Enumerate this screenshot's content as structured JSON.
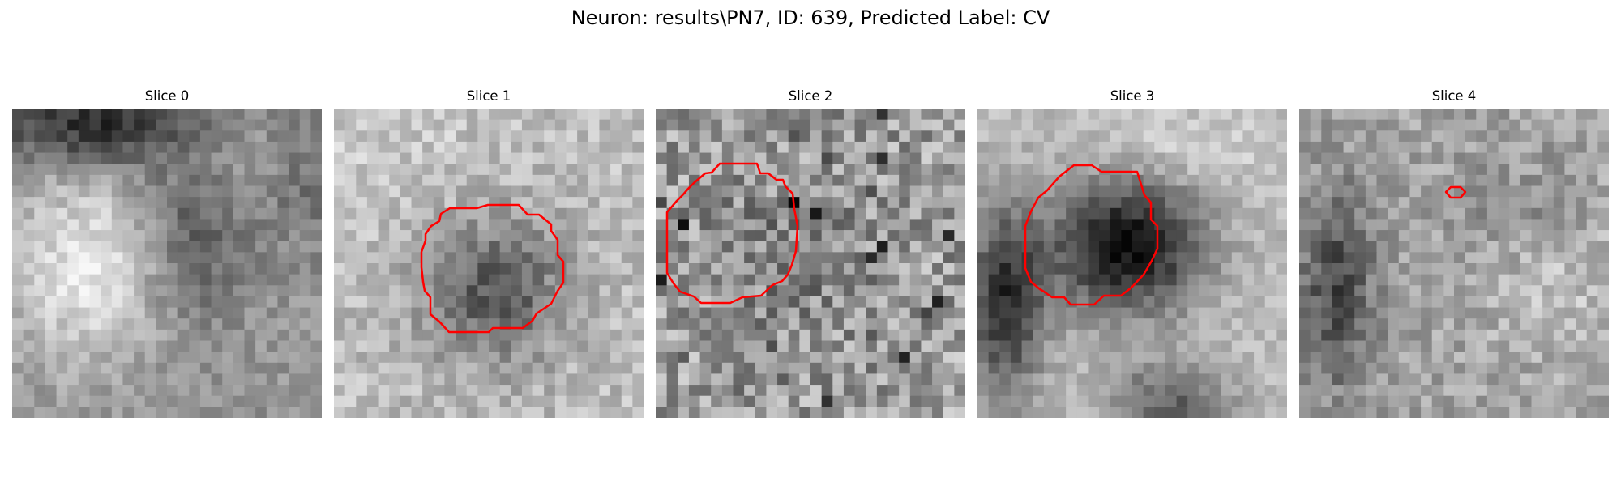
{
  "figure": {
    "title": "Neuron: results\\PN7, ID: 639, Predicted Label: CV",
    "contour_color": "#ff0000",
    "colormap": "grayscale",
    "panels": [
      {
        "title": "Slice 0",
        "contour": false
      },
      {
        "title": "Slice 1",
        "contour": true
      },
      {
        "title": "Slice 2",
        "contour": true
      },
      {
        "title": "Slice 3",
        "contour": true
      },
      {
        "title": "Slice 4",
        "contour": true
      }
    ]
  }
}
